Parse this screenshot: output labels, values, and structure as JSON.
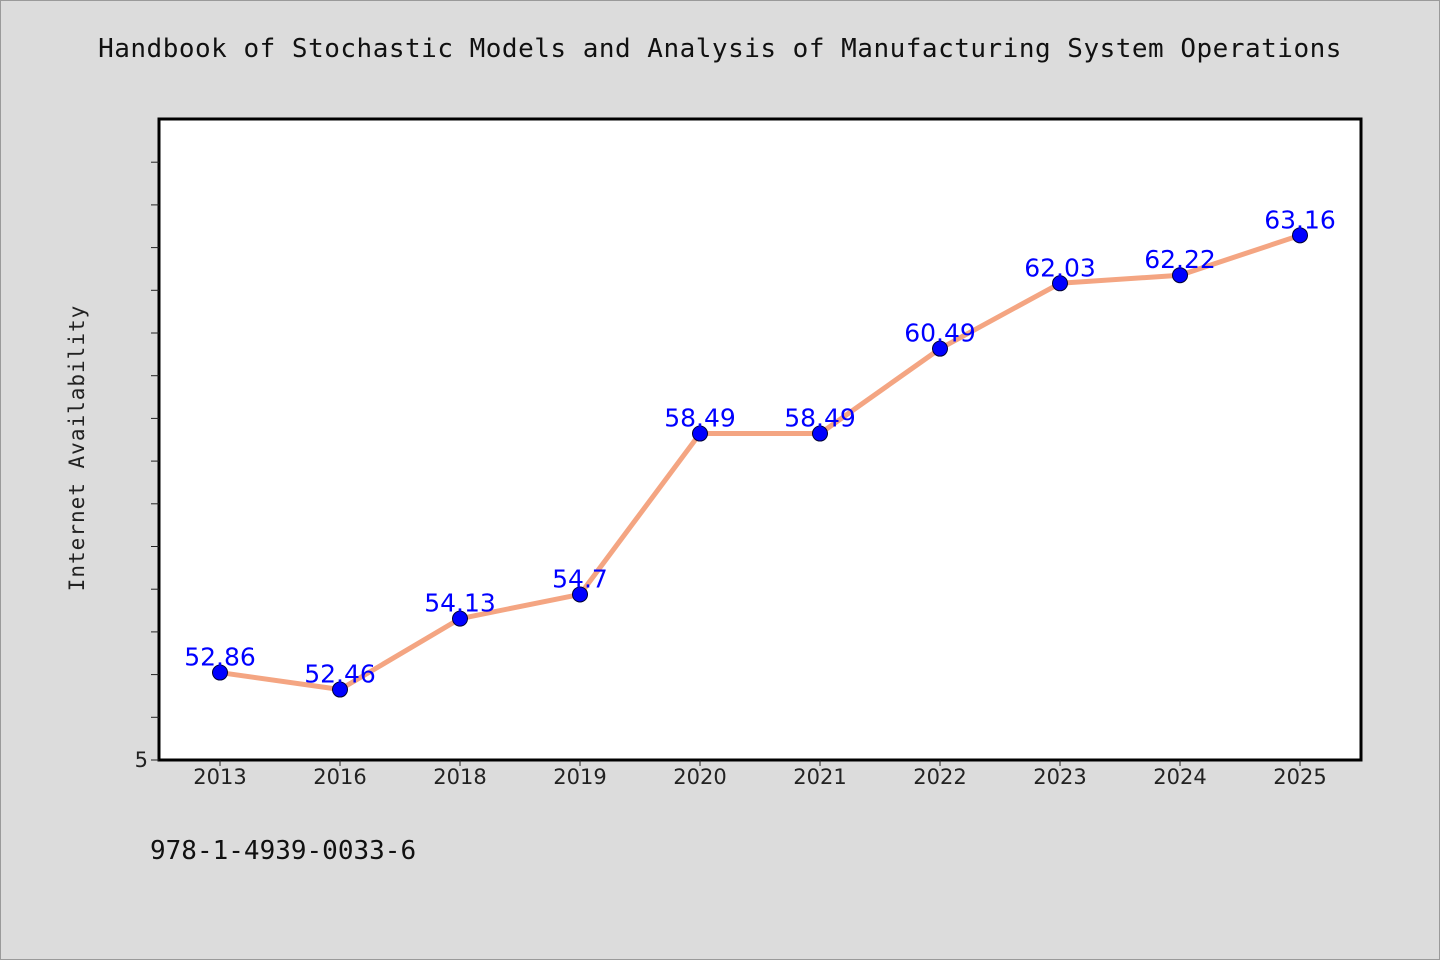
{
  "chart_data": {
    "type": "line",
    "title": "Handbook of Stochastic Models and Analysis of Manufacturing System Operations",
    "ylabel": "Internet Availability",
    "xlabel": "",
    "categories": [
      "2013",
      "2016",
      "2018",
      "2019",
      "2020",
      "2021",
      "2022",
      "2023",
      "2024",
      "2025"
    ],
    "series": [
      {
        "values": [
          52.86,
          52.46,
          54.13,
          54.7,
          58.49,
          58.49,
          60.49,
          62.03,
          62.22,
          63.16
        ],
        "data_labels": [
          "52.86",
          "52.46",
          "54.13",
          "54.7",
          "58.49",
          "58.49",
          "60.49",
          "62.03",
          "62.22",
          "63.16"
        ]
      }
    ],
    "ylim": [
      50.8,
      65.9
    ],
    "y_tick_labels": [
      "5"
    ],
    "grid": false,
    "line_color": "#f4a582",
    "marker_color": "#0000ff",
    "label_color": "#0000ff"
  },
  "footer": {
    "isbn": "978-1-4939-0033-6"
  }
}
